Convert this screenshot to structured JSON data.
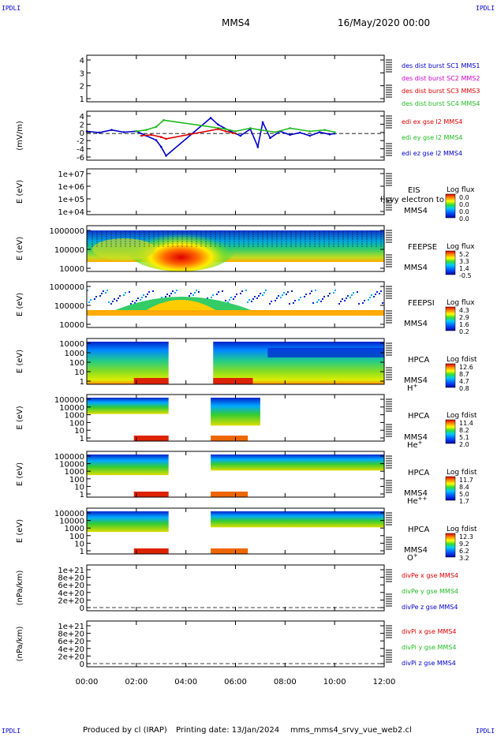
{
  "header": {
    "corner_label": "IPDLI",
    "spacecraft": "MMS4",
    "date": "16/May/2020 00:00"
  },
  "footer": {
    "producer": "Produced by cl (IRAP)",
    "printing_date": "Printing date: 13/Jan/2024",
    "config": "mms_mms4_srvy_vue_web2.cl"
  },
  "time_axis": {
    "ticks": [
      "00:00",
      "02:00",
      "04:00",
      "06:00",
      "08:00",
      "10:00",
      "12:00"
    ],
    "range_hours": [
      0,
      12
    ]
  },
  "colors": {
    "red": "#dd0000",
    "green": "#22bb22",
    "blue": "#0000cc",
    "magenta": "#cc00cc"
  },
  "chart_data": [
    {
      "type": "line",
      "panel": "des-dist-burst",
      "ylim": [
        0.5,
        4.5
      ],
      "ytick_labels": [
        "4",
        "3",
        "2",
        "1"
      ],
      "ylabel": "",
      "legend": [
        {
          "text": "des dist burst SC1 MMS1",
          "color": "#0000cc"
        },
        {
          "text": "des dist burst SC2 MMS2",
          "color": "#cc00cc"
        },
        {
          "text": "des dist burst SC3 MMS3",
          "color": "#dd0000"
        },
        {
          "text": "des dist burst SC4 MMS4",
          "color": "#22bb22"
        }
      ],
      "series": []
    },
    {
      "type": "line",
      "panel": "edi-e-field",
      "ylim": [
        -6,
        5
      ],
      "ytick_labels": [
        "4",
        "2",
        "0",
        "-2",
        "-4",
        "-6"
      ],
      "ylabel": "(mV/m)",
      "legend": [
        {
          "text": "edi ex gse l2 MMS4",
          "color": "#dd0000"
        },
        {
          "text": "edi ey gse l2 MMS4",
          "color": "#22bb22"
        },
        {
          "text": "edi ez gse l2 MMS4",
          "color": "#0000cc"
        }
      ],
      "series": [
        {
          "color": "#0000cc",
          "x": [
            0,
            0.5,
            1,
            1.5,
            2,
            2.4,
            2.8,
            3.0,
            3.2,
            5.0,
            5.3,
            5.8,
            6.2,
            6.6,
            6.9,
            7.1,
            7.4,
            7.8,
            8.2,
            8.6,
            9.0,
            9.4,
            9.8,
            10.0
          ],
          "y": [
            0.5,
            0.2,
            0.8,
            0.3,
            0.5,
            -0.5,
            -1.5,
            -3,
            -5,
            3.5,
            2,
            0.5,
            -0.5,
            1,
            -3,
            2.5,
            -1,
            0.5,
            -0.3,
            0.2,
            -0.5,
            0.3,
            -0.2,
            0
          ]
        },
        {
          "color": "#22bb22",
          "x": [
            2.0,
            2.4,
            2.8,
            3.1,
            5.6,
            6.0,
            6.6,
            7.0,
            7.6,
            8.2,
            9.0,
            9.6,
            10.0
          ],
          "y": [
            0.5,
            0.8,
            1.5,
            3,
            1.0,
            0.5,
            1.2,
            0.8,
            0.3,
            1.2,
            0.5,
            0.8,
            0.3
          ]
        },
        {
          "color": "#dd0000",
          "x": [
            2.2,
            2.6,
            3.0,
            3.2,
            5.3,
            5.6,
            6.0
          ],
          "y": [
            -0.5,
            -0.3,
            -0.8,
            -1.2,
            1.0,
            0.5,
            0.0
          ]
        }
      ]
    },
    {
      "type": "heatmap",
      "panel": "eis",
      "ytick_labels": [
        "1e+07",
        "1e+06",
        "1e+05",
        "1e+04"
      ],
      "ylabel": "E (eV)",
      "instrument_labels": [
        "EIS",
        "MMS4"
      ],
      "overlay_text": "l)svy electron to",
      "colorbar": {
        "title": "Log flux",
        "ticks": [
          "0.0",
          "0.0",
          "0.0",
          "0.0"
        ]
      }
    },
    {
      "type": "heatmap",
      "panel": "feeps-e",
      "ytick_labels": [
        "1000000",
        "100000",
        "10000"
      ],
      "ylabel": "E (eV)",
      "instrument_labels": [
        "FEEPSE",
        "MMS4"
      ],
      "colorbar": {
        "title": "Log flux",
        "ticks": [
          "5.2",
          "3.3",
          "1.4",
          "-0.5"
        ]
      }
    },
    {
      "type": "heatmap",
      "panel": "feeps-i",
      "ytick_labels": [
        "1000000",
        "100000",
        "10000"
      ],
      "ylabel": "E (eV)",
      "instrument_labels": [
        "FEEPSI",
        "MMS4"
      ],
      "colorbar": {
        "title": "Log flux",
        "ticks": [
          "4.3",
          "2.9",
          "1.6",
          "0.2"
        ]
      }
    },
    {
      "type": "heatmap",
      "panel": "hpca-h",
      "ytick_labels": [
        "10000",
        "1000",
        "100",
        "10",
        "1"
      ],
      "ylabel": "E (eV)",
      "instrument_labels": [
        "HPCA",
        "MMS4"
      ],
      "species": "H",
      "species_sup": "+",
      "colorbar": {
        "title": "Log fdist",
        "ticks": [
          "12.6",
          "8.7",
          "4.7",
          "0.8"
        ]
      }
    },
    {
      "type": "heatmap",
      "panel": "hpca-he1",
      "ytick_labels": [
        "100000",
        "10000",
        "1000",
        "100",
        "10",
        "1"
      ],
      "ylabel": "E (eV)",
      "instrument_labels": [
        "HPCA",
        "MMS4"
      ],
      "species": "He",
      "species_sup": "+",
      "colorbar": {
        "title": "Log fdist",
        "ticks": [
          "11.4",
          "8.2",
          "5.1",
          "2.0"
        ]
      }
    },
    {
      "type": "heatmap",
      "panel": "hpca-he2",
      "ytick_labels": [
        "100000",
        "10000",
        "1000",
        "100",
        "10",
        "1"
      ],
      "ylabel": "E (eV)",
      "instrument_labels": [
        "HPCA",
        "MMS4"
      ],
      "species": "He",
      "species_sup": "++",
      "colorbar": {
        "title": "Log fdist",
        "ticks": [
          "11.7",
          "8.4",
          "5.0",
          "1.7"
        ]
      }
    },
    {
      "type": "heatmap",
      "panel": "hpca-o",
      "ytick_labels": [
        "100000",
        "10000",
        "1000",
        "100",
        "10",
        "1"
      ],
      "ylabel": "E (eV)",
      "instrument_labels": [
        "HPCA",
        "MMS4"
      ],
      "species": "O",
      "species_sup": "+",
      "colorbar": {
        "title": "Log fdist",
        "ticks": [
          "12.3",
          "9.2",
          "6.2",
          "3.2"
        ]
      }
    },
    {
      "type": "line",
      "panel": "divpe",
      "ytick_labels": [
        "1e+21",
        "8e+20",
        "6e+20",
        "4e+20",
        "2e+20",
        "0"
      ],
      "ylabel": "(nPa/km)",
      "legend": [
        {
          "text": "divPe x gse MMS4",
          "color": "#dd0000"
        },
        {
          "text": "divPe y gse MMS4",
          "color": "#22bb22"
        },
        {
          "text": "divPe z gse MMS4",
          "color": "#0000cc"
        }
      ],
      "series": []
    },
    {
      "type": "line",
      "panel": "divpi",
      "ytick_labels": [
        "1e+21",
        "8e+20",
        "6e+20",
        "4e+20",
        "2e+20",
        "0"
      ],
      "ylabel": "(nPa/km)",
      "legend": [
        {
          "text": "divPi x gse MMS4",
          "color": "#dd0000"
        },
        {
          "text": "divPi y gse MMS4",
          "color": "#22bb22"
        },
        {
          "text": "divPi z gse MMS4",
          "color": "#0000cc"
        }
      ],
      "series": []
    }
  ]
}
